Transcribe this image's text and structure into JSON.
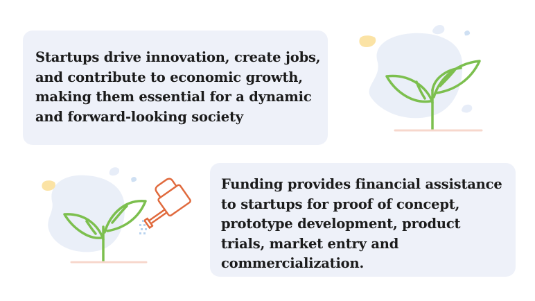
{
  "cards": [
    {
      "text": "Startups drive innovation, create jobs, and contribute to economic growth, making them essential for a dynamic and forward-looking society"
    },
    {
      "text": "Funding provides financial assistance to startups for proof of concept, prototype development, product trials, market entry and commercialization."
    }
  ],
  "colors": {
    "card_background": "#eef1f9",
    "text": "#1b1b1b",
    "plant_green": "#7cbf4e",
    "watering_can_orange": "#e06a3d",
    "ground_line": "#f7d7cc",
    "blob_blue": "#eaeff8",
    "accent_yellow": "#fbe3a5",
    "droplet_blue": "#cfe0f3"
  },
  "illustrations": [
    {
      "icon": "sprout-icon"
    },
    {
      "icon": "sprout-with-watering-can-icon"
    }
  ]
}
